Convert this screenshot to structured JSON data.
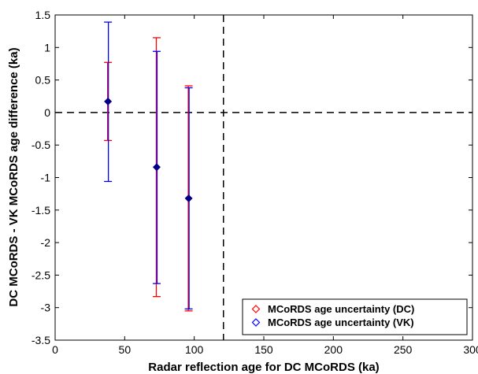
{
  "chart_data": {
    "type": "scatter",
    "title": "",
    "xlabel": "Radar reflection age for DC MCoRDS (ka)",
    "ylabel": "DC MCoRDS - VK MCoRDS  age difference (ka)",
    "xlim": [
      0,
      300
    ],
    "ylim": [
      -3.5,
      1.5
    ],
    "xticks": [
      0,
      50,
      100,
      150,
      200,
      250,
      300
    ],
    "xtick_labels": [
      "0",
      "50",
      "100",
      "150",
      "200",
      "250",
      "300"
    ],
    "yticks": [
      1.5,
      1,
      0.5,
      0,
      -0.5,
      -1,
      -1.5,
      -2,
      -2.5,
      -3,
      -3.5
    ],
    "ytick_labels": [
      "1.5",
      "1",
      "0.5",
      "0",
      "-0.5",
      "-1",
      "-1.5",
      "-2",
      "-2.5",
      "-3",
      "-3.5"
    ],
    "grid": false,
    "reference_lines": {
      "y": 0,
      "x": 121,
      "style": "dashed",
      "color": "#000000"
    },
    "series": [
      {
        "name": "MCoRDS age uncertainty (DC)",
        "color": "#ff0000",
        "marker": "diamond-open",
        "points": [
          {
            "x": 38,
            "y": 0.17,
            "err_low": -0.43,
            "err_high": 0.77
          },
          {
            "x": 73,
            "y": -0.84,
            "err_low": -2.83,
            "err_high": 1.15
          },
          {
            "x": 96,
            "y": -1.32,
            "err_low": -3.05,
            "err_high": 0.41
          }
        ]
      },
      {
        "name": "MCoRDS age uncertainty (VK)",
        "color": "#0000ff",
        "marker": "diamond",
        "points": [
          {
            "x": 38,
            "y": 0.17,
            "err_low": -1.06,
            "err_high": 1.39
          },
          {
            "x": 73,
            "y": -0.84,
            "err_low": -2.63,
            "err_high": 0.94
          },
          {
            "x": 96,
            "y": -1.32,
            "err_low": -3.02,
            "err_high": 0.38
          }
        ]
      }
    ],
    "legend": {
      "position": "bottom-right",
      "entries": [
        "MCoRDS age uncertainty (DC)",
        "MCoRDS age uncertainty (VK)"
      ]
    }
  }
}
